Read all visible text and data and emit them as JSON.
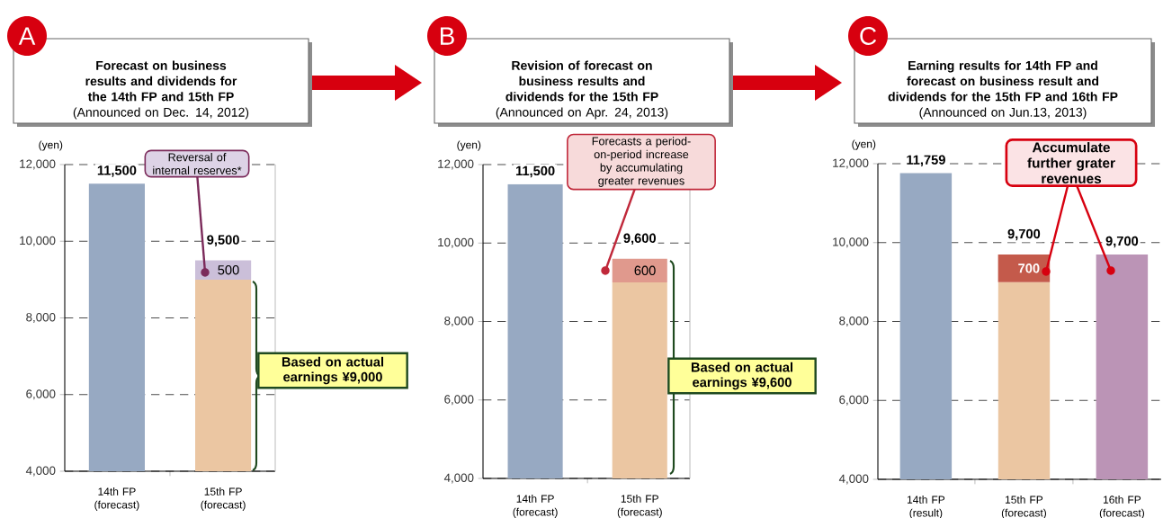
{
  "chart_data": [
    {
      "type": "bar",
      "stacked": true,
      "grid": "y",
      "title": "Forecast on business results and dividends for the 14th FP and 15th FP",
      "subtitle": "(Announced on Dec. 14, 2012)",
      "ylabel": "(yen)",
      "categories": [
        "14th FP (forecast)",
        "15th FP (forecast)"
      ],
      "series": [
        {
          "colors": [
            "#97a9c2",
            "#ebc6a2"
          ],
          "values": [
            11500,
            9000
          ],
          "value_labels": [
            "11,500",
            null
          ]
        },
        {
          "colors": [
            "#cbbfd9",
            "#cbbfd9"
          ],
          "values": [
            null,
            500
          ],
          "base": [
            null,
            9000
          ],
          "value_labels": [
            null,
            "500"
          ]
        }
      ],
      "totals": [
        null,
        "9,500"
      ],
      "ylim": [
        4000,
        12000
      ],
      "yticks": [
        {
          "value": 4000,
          "label": "4,000"
        },
        {
          "value": 6000,
          "label": "6,000"
        },
        {
          "value": 8000,
          "label": "8,000"
        },
        {
          "value": 10000,
          "label": "10,000"
        },
        {
          "value": 12000,
          "label": "12,000"
        }
      ],
      "annotations": [
        "A",
        "Reversal of internal reserves*",
        "Based on actual earnings ¥9,000"
      ]
    },
    {
      "type": "bar",
      "stacked": true,
      "grid": "y",
      "title": "Revision of forecast on business results and dividends for the 15th FP",
      "subtitle": "(Announced on Apr. 24, 2013)",
      "ylabel": "(yen)",
      "categories": [
        "14th FP (forecast)",
        "15th FP (forecast)"
      ],
      "series": [
        {
          "colors": [
            "#97a9c2",
            "#ebc6a2"
          ],
          "values": [
            11500,
            9000
          ],
          "value_labels": [
            "11,500",
            null
          ]
        },
        {
          "colors": [
            "#e0998d",
            "#e0998d"
          ],
          "values": [
            null,
            600
          ],
          "base": [
            null,
            9000
          ],
          "value_labels": [
            null,
            "600"
          ]
        }
      ],
      "totals": [
        null,
        "9,600"
      ],
      "ylim": [
        4000,
        12000
      ],
      "yticks": [
        {
          "value": 4000,
          "label": "4,000"
        },
        {
          "value": 6000,
          "label": "6,000"
        },
        {
          "value": 8000,
          "label": "8,000"
        },
        {
          "value": 10000,
          "label": "10,000"
        },
        {
          "value": 12000,
          "label": "12,000"
        }
      ],
      "annotations": [
        "B",
        "Forecasts a period-on-period increase by accumulating greater revenues",
        "Based on actual earnings ¥9,600"
      ]
    },
    {
      "type": "bar",
      "stacked": true,
      "grid": "y",
      "title": "Earning results for 14th FP and forecast on business result and dividends for the 15th FP and 16th FP",
      "subtitle": "(Announced on Jun.13, 2013)",
      "ylabel": "(yen)",
      "categories": [
        "14th FP (result)",
        "15th FP (forecast)",
        "16th FP (forecast)"
      ],
      "series": [
        {
          "colors": [
            "#97a9c2",
            "#ebc6a2",
            "#bb94b6"
          ],
          "values": [
            11759,
            9000,
            9700
          ],
          "value_labels": [
            "11,759",
            null,
            "9,700"
          ]
        },
        {
          "colors": [
            "#c45a4b",
            "#c45a4b",
            "#c45a4b"
          ],
          "values": [
            null,
            700,
            null
          ],
          "base": [
            null,
            9000,
            null
          ],
          "value_labels": [
            null,
            "700",
            null
          ]
        }
      ],
      "totals": [
        null,
        "9,700",
        null
      ],
      "ylim": [
        4000,
        12000
      ],
      "yticks": [
        {
          "value": 4000,
          "label": "4,000"
        },
        {
          "value": 6000,
          "label": "6,000"
        },
        {
          "value": 8000,
          "label": "8,000"
        },
        {
          "value": 10000,
          "label": "10,000"
        },
        {
          "value": 12000,
          "label": "12,000"
        }
      ],
      "annotations": [
        "C",
        "Accumulate further grater revenues"
      ]
    }
  ]
}
